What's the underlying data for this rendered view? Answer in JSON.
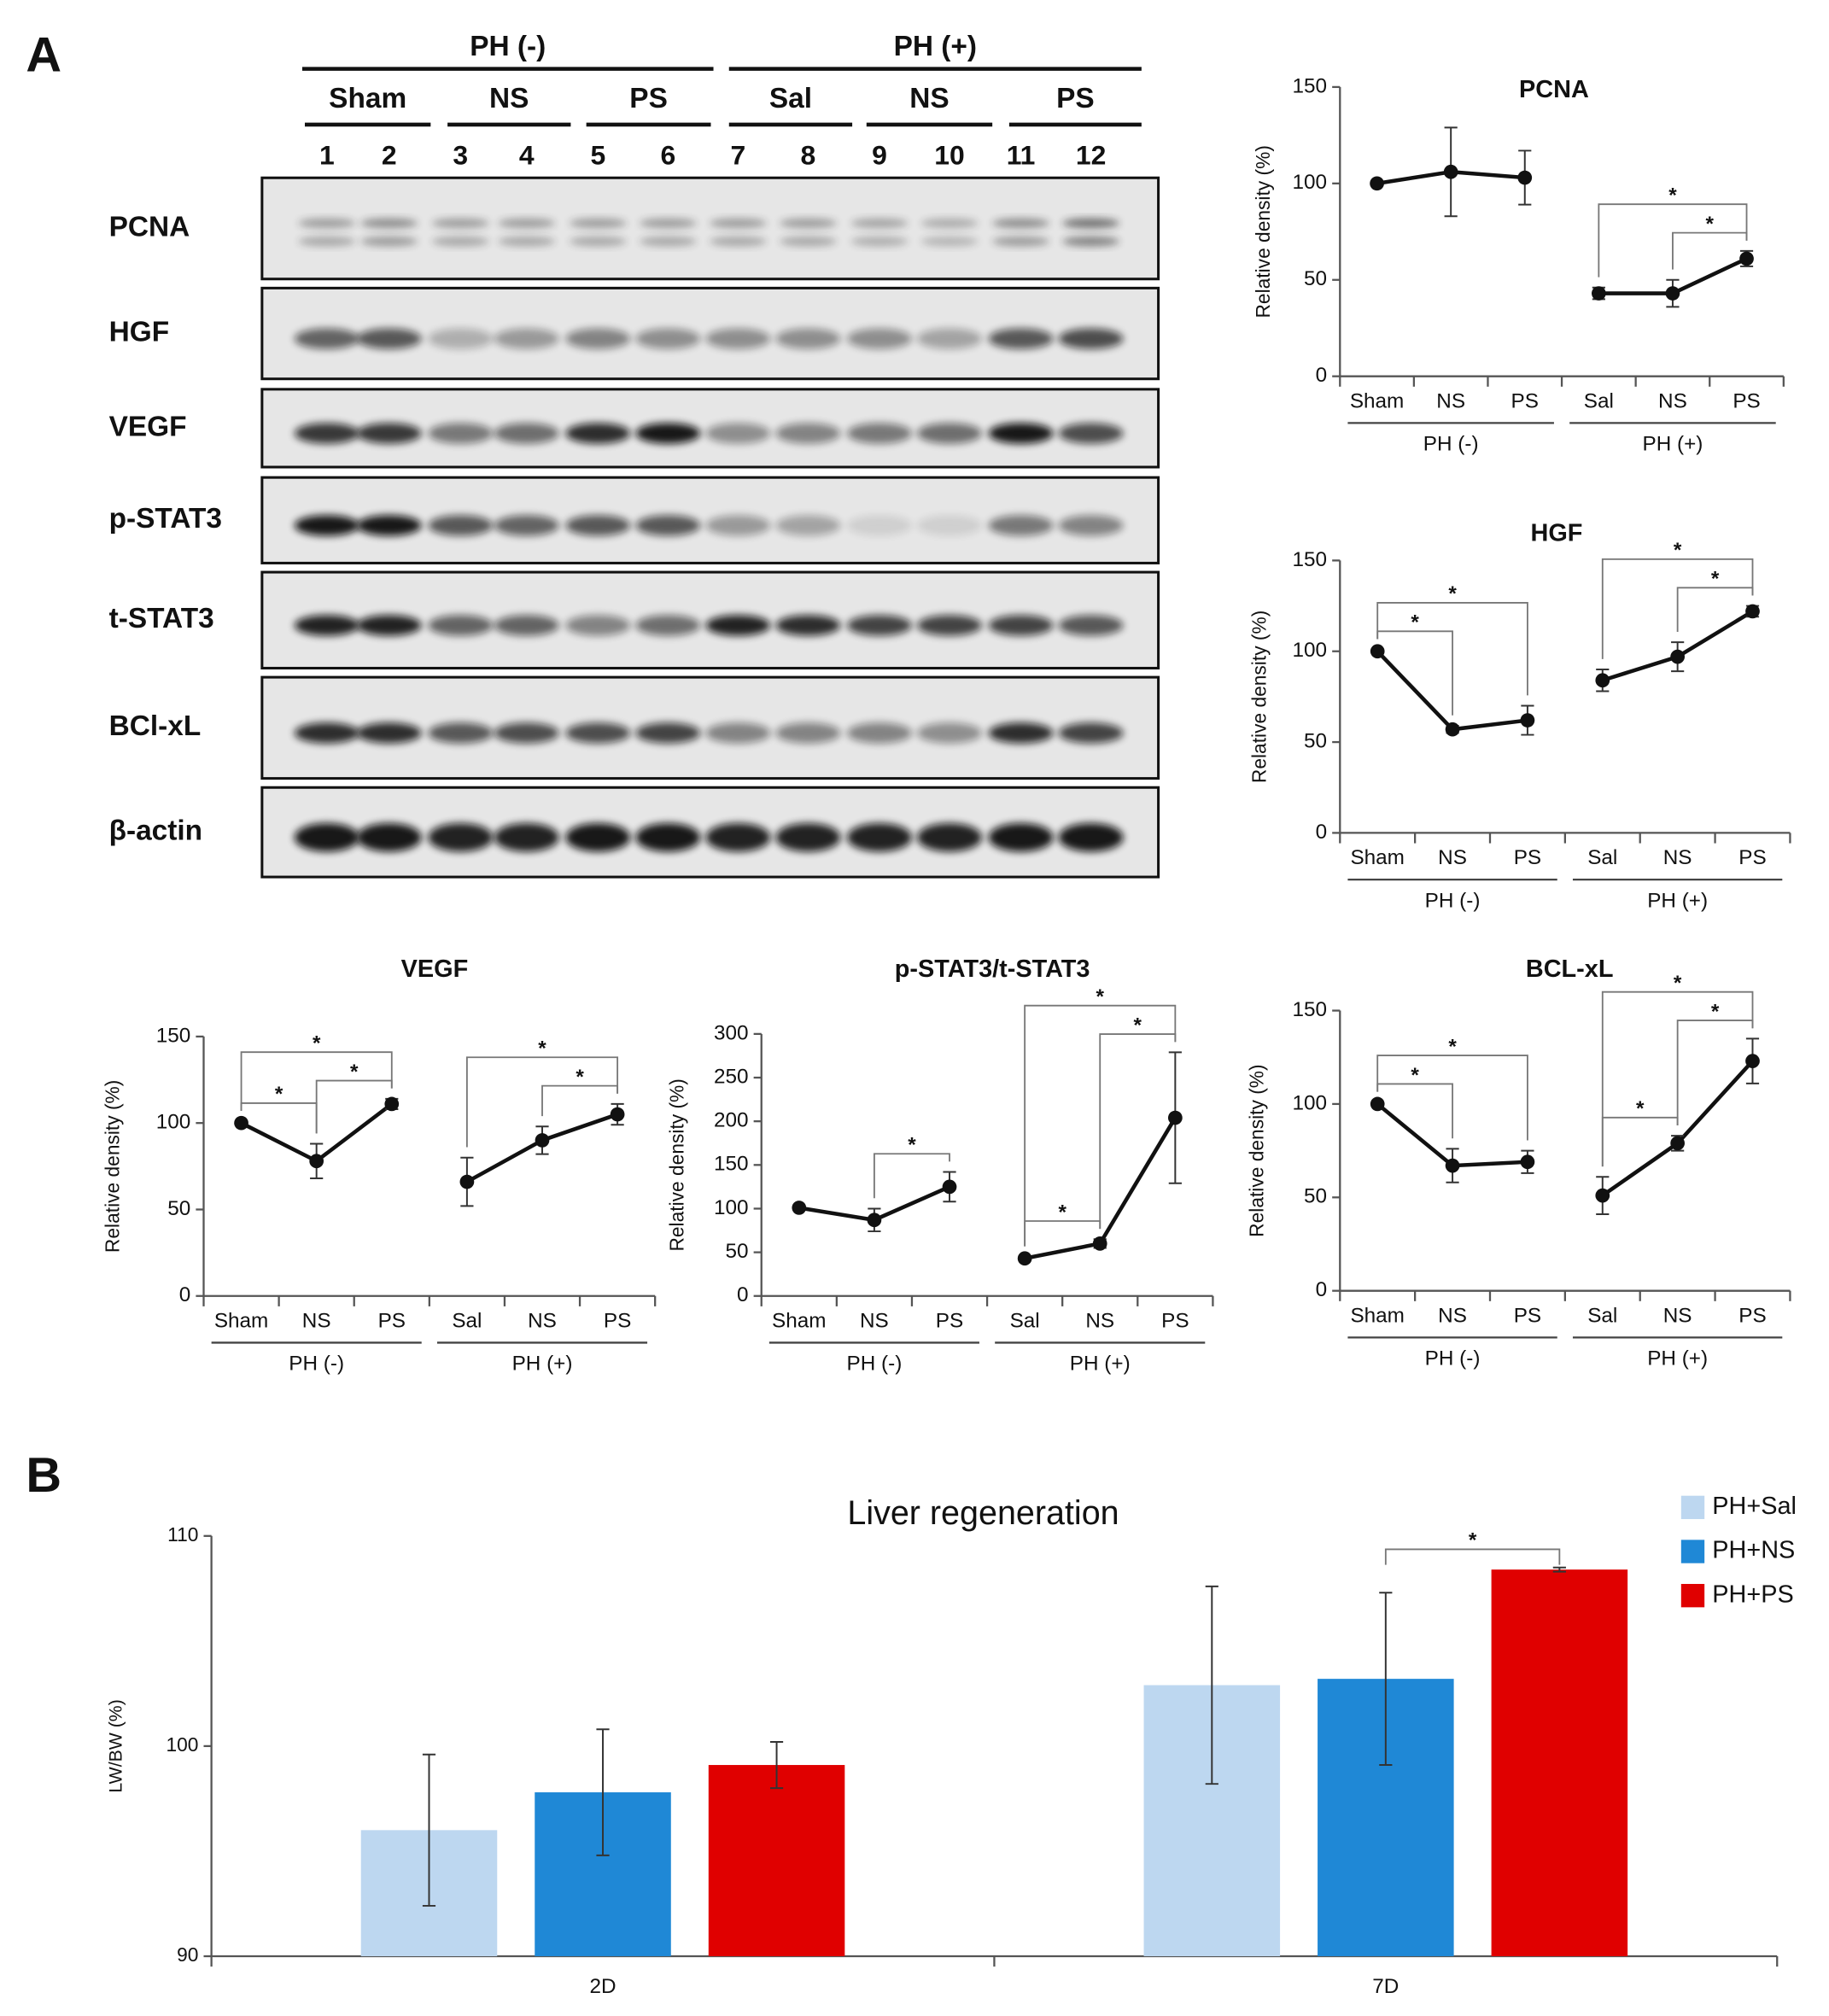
{
  "panels": [
    "A",
    "B"
  ],
  "blot": {
    "groups": [
      {
        "label": "PH (-)",
        "subgroups": [
          "Sham",
          "NS",
          "PS"
        ]
      },
      {
        "label": "PH (+)",
        "subgroups": [
          "Sal",
          "NS",
          "PS"
        ]
      }
    ],
    "lanes": [
      1,
      2,
      3,
      4,
      5,
      6,
      7,
      8,
      9,
      10,
      11,
      12
    ],
    "proteins": [
      "PCNA",
      "HGF",
      "VEGF",
      "p-STAT3",
      "t-STAT3",
      "BCl-xL",
      "β-actin"
    ]
  },
  "chart_data": [
    {
      "type": "line",
      "title": "PCNA",
      "ylabel": "Relative density (%)",
      "ylim": [
        0,
        150
      ],
      "yticks": [
        0,
        50,
        100,
        150
      ],
      "groups": [
        {
          "label": "PH (-)",
          "categories": [
            "Sham",
            "NS",
            "PS"
          ],
          "values": [
            100,
            106,
            103
          ],
          "errors": [
            1,
            23,
            14
          ]
        },
        {
          "label": "PH (+)",
          "categories": [
            "Sal",
            "NS",
            "PS"
          ],
          "values": [
            43,
            43,
            61
          ],
          "errors": [
            3,
            7,
            4
          ]
        }
      ],
      "significance": [
        {
          "label": "*",
          "between": [
            4,
            5
          ]
        },
        {
          "label": "*",
          "between": [
            3,
            5
          ]
        }
      ]
    },
    {
      "type": "line",
      "title": "HGF",
      "ylabel": "Relative density (%)",
      "ylim": [
        0,
        150
      ],
      "yticks": [
        0,
        50,
        100,
        150
      ],
      "groups": [
        {
          "label": "PH (-)",
          "categories": [
            "Sham",
            "NS",
            "PS"
          ],
          "values": [
            100,
            57,
            62
          ],
          "errors": [
            1,
            2,
            8
          ]
        },
        {
          "label": "PH (+)",
          "categories": [
            "Sal",
            "NS",
            "PS"
          ],
          "values": [
            84,
            97,
            122
          ],
          "errors": [
            6,
            8,
            3
          ]
        }
      ],
      "significance": [
        {
          "label": "*",
          "between": [
            0,
            1
          ]
        },
        {
          "label": "*",
          "between": [
            0,
            2
          ]
        },
        {
          "label": "*",
          "between": [
            4,
            5
          ]
        },
        {
          "label": "*",
          "between": [
            3,
            5
          ]
        }
      ]
    },
    {
      "type": "line",
      "title": "VEGF",
      "ylabel": "Relative density (%)",
      "ylim": [
        0,
        150
      ],
      "yticks": [
        0,
        50,
        100,
        150
      ],
      "groups": [
        {
          "label": "PH (-)",
          "categories": [
            "Sham",
            "NS",
            "PS"
          ],
          "values": [
            100,
            78,
            111
          ],
          "errors": [
            1,
            10,
            3
          ]
        },
        {
          "label": "PH (+)",
          "categories": [
            "Sal",
            "NS",
            "PS"
          ],
          "values": [
            66,
            90,
            105
          ],
          "errors": [
            14,
            8,
            6
          ]
        }
      ],
      "significance": [
        {
          "label": "*",
          "between": [
            0,
            1
          ]
        },
        {
          "label": "*",
          "between": [
            1,
            2
          ]
        },
        {
          "label": "*",
          "between": [
            0,
            2
          ]
        },
        {
          "label": "*",
          "between": [
            4,
            5
          ]
        },
        {
          "label": "*",
          "between": [
            3,
            5
          ]
        }
      ]
    },
    {
      "type": "line",
      "title": "p-STAT3/t-STAT3",
      "ylabel": "Relative density (%)",
      "ylim": [
        0,
        300
      ],
      "yticks": [
        0,
        50,
        100,
        150,
        200,
        250,
        300
      ],
      "groups": [
        {
          "label": "PH (-)",
          "categories": [
            "Sham",
            "NS",
            "PS"
          ],
          "values": [
            101,
            87,
            125
          ],
          "errors": [
            2,
            13,
            17
          ]
        },
        {
          "label": "PH (+)",
          "categories": [
            "Sal",
            "NS",
            "PS"
          ],
          "values": [
            43,
            60,
            204
          ],
          "errors": [
            2,
            5,
            75
          ]
        }
      ],
      "significance": [
        {
          "label": "*",
          "between": [
            1,
            2
          ]
        },
        {
          "label": "*",
          "between": [
            3,
            4
          ]
        },
        {
          "label": "*",
          "between": [
            4,
            5
          ]
        },
        {
          "label": "*",
          "between": [
            3,
            5
          ]
        }
      ]
    },
    {
      "type": "line",
      "title": "BCL-xL",
      "ylabel": "Relative density (%)",
      "ylim": [
        0,
        150
      ],
      "yticks": [
        0,
        50,
        100,
        150
      ],
      "groups": [
        {
          "label": "PH (-)",
          "categories": [
            "Sham",
            "NS",
            "PS"
          ],
          "values": [
            100,
            67,
            69
          ],
          "errors": [
            1,
            9,
            6
          ]
        },
        {
          "label": "PH (+)",
          "categories": [
            "Sal",
            "NS",
            "PS"
          ],
          "values": [
            51,
            79,
            123
          ],
          "errors": [
            10,
            4,
            12
          ]
        }
      ],
      "significance": [
        {
          "label": "*",
          "between": [
            0,
            1
          ]
        },
        {
          "label": "*",
          "between": [
            0,
            2
          ]
        },
        {
          "label": "*",
          "between": [
            3,
            4
          ]
        },
        {
          "label": "*",
          "between": [
            4,
            5
          ]
        },
        {
          "label": "*",
          "between": [
            3,
            5
          ]
        }
      ]
    },
    {
      "type": "bar",
      "title": "Liver regeneration",
      "ylabel": "LW/BW (%)",
      "ylim": [
        90,
        110
      ],
      "yticks": [
        90,
        100,
        110
      ],
      "categories": [
        "2D",
        "7D"
      ],
      "series": [
        {
          "name": "PH+Sal",
          "color": "#bdd7f0",
          "values": [
            96.0,
            102.9
          ],
          "errors": [
            3.6,
            4.7
          ]
        },
        {
          "name": "PH+NS",
          "color": "#1f88d6",
          "values": [
            97.8,
            103.2
          ],
          "errors": [
            3.0,
            4.1
          ]
        },
        {
          "name": "PH+PS",
          "color": "#e00000",
          "values": [
            99.1,
            108.4
          ],
          "errors": [
            1.1,
            0.1
          ]
        }
      ],
      "significance": [
        {
          "label": "*",
          "category": 1,
          "between": [
            1,
            2
          ]
        }
      ]
    }
  ]
}
